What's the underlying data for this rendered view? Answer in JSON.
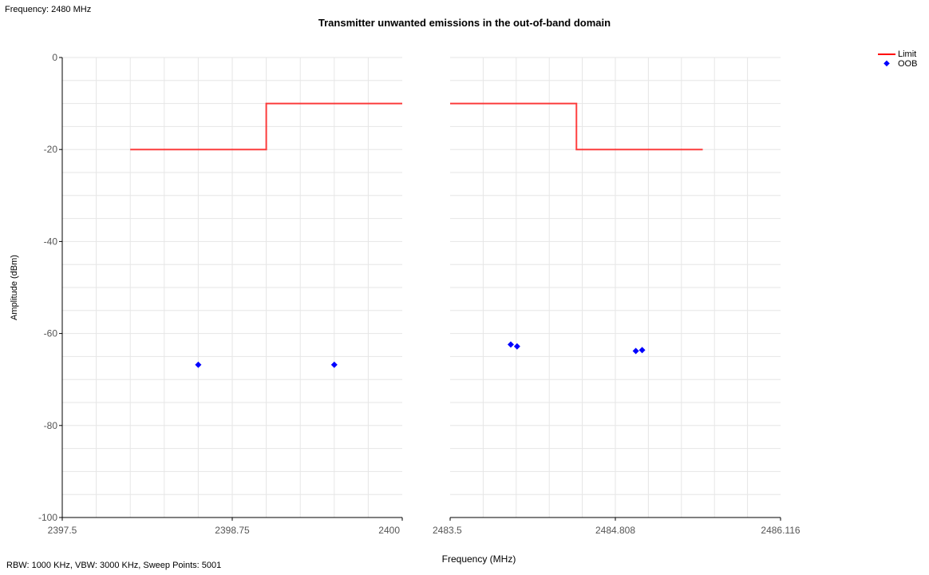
{
  "header": {
    "frequency_text": "Frequency: 2480 MHz"
  },
  "footer": {
    "settings_text": "RBW: 1000 KHz,  VBW: 3000 KHz,  Sweep Points: 5001"
  },
  "colors": {
    "limit": "#ff0000",
    "oob": "#0000ff",
    "grid": "#e6e6e6",
    "axis": "#000000"
  },
  "chart_data": {
    "type": "scatter",
    "title": "Transmitter unwanted emissions in the out-of-band domain",
    "xlabel": "Frequency (MHz)",
    "ylabel": "Amplitude (dBm)",
    "ylim": [
      -100,
      0
    ],
    "yticks": [
      0,
      -20,
      -40,
      -60,
      -80,
      -100
    ],
    "grid": true,
    "legend_position": "top-right",
    "panels": [
      {
        "xlim": [
          2397.5,
          2400
        ],
        "xtick_labels": [
          "2397.5",
          "2398.75",
          "2400"
        ],
        "limit_line": {
          "x": [
            2398.0,
            2399.0,
            2399.0,
            2400.0
          ],
          "y": [
            -20,
            -20,
            -10,
            -10
          ]
        },
        "oob_points": {
          "x": [
            2398.5,
            2399.5
          ],
          "y": [
            -66.8,
            -66.8
          ]
        }
      },
      {
        "xlim": [
          2483.5,
          2486.116
        ],
        "xtick_labels": [
          "2483.5",
          "2484.808",
          "2486.116"
        ],
        "limit_line": {
          "x": [
            2483.5,
            2484.5,
            2484.5,
            2485.5
          ],
          "y": [
            -10,
            -10,
            -20,
            -20
          ]
        },
        "oob_points": {
          "x": [
            2483.98,
            2484.03,
            2484.97,
            2485.02
          ],
          "y": [
            -62.4,
            -62.8,
            -63.8,
            -63.6
          ]
        }
      }
    ],
    "series": [
      {
        "name": "Limit",
        "style": "line"
      },
      {
        "name": "OOB",
        "style": "marker"
      }
    ]
  }
}
